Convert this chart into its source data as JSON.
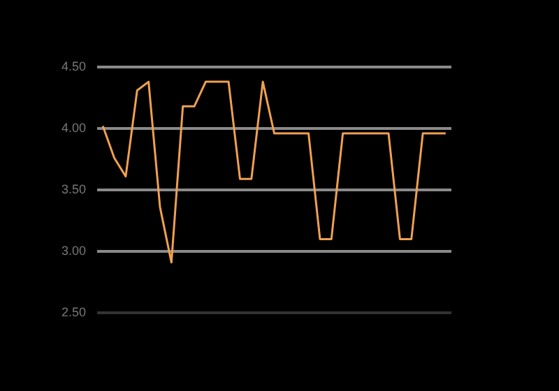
{
  "chart_data": {
    "type": "line",
    "categories": [
      null,
      null,
      null,
      null,
      null,
      null,
      null,
      null,
      null,
      null,
      null,
      null,
      null,
      null,
      null,
      null,
      null,
      null,
      null,
      null,
      null,
      null,
      null,
      null,
      null,
      null,
      null,
      null,
      null,
      null,
      null
    ],
    "values": [
      4.02,
      3.76,
      3.61,
      4.31,
      4.38,
      3.36,
      2.91,
      4.18,
      4.18,
      4.38,
      4.38,
      4.38,
      3.59,
      3.59,
      4.38,
      3.96,
      3.96,
      3.96,
      3.96,
      3.1,
      3.1,
      3.96,
      3.96,
      3.96,
      3.96,
      3.96,
      3.1,
      3.1,
      3.96,
      3.96,
      3.96
    ],
    "color": "#f0a050",
    "ylim": [
      2.5,
      4.5
    ],
    "yticks": [
      {
        "value": 2.5,
        "label": "2.50"
      },
      {
        "value": 3,
        "label": "3.00"
      },
      {
        "value": 3.5,
        "label": "3.50"
      },
      {
        "value": 4,
        "label": "4.00"
      },
      {
        "value": 4.5,
        "label": "4.50"
      }
    ],
    "grid": "y",
    "tick_labels": "y",
    "marker": "none"
  }
}
